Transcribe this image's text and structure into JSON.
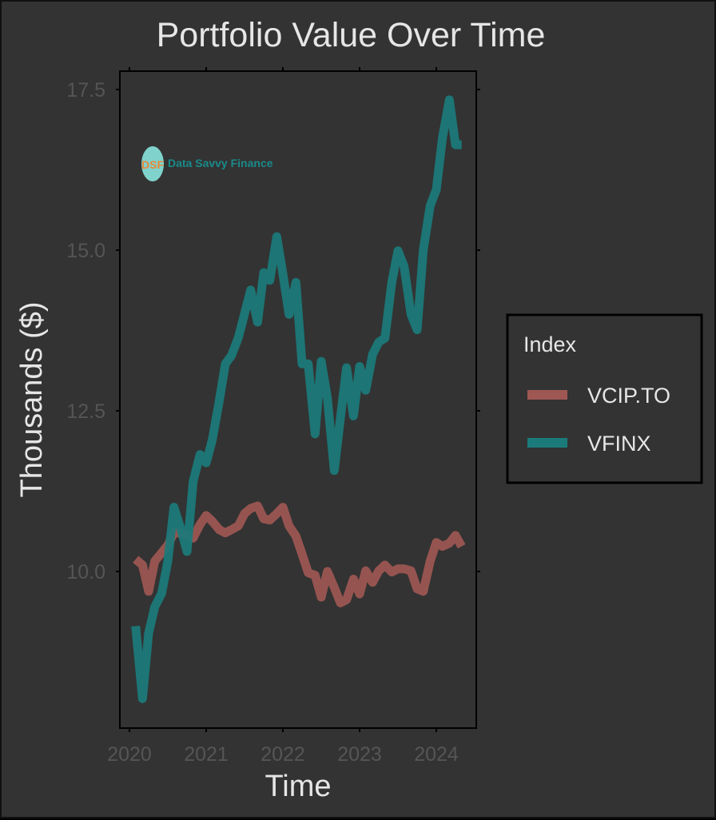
{
  "title": "Portfolio Value Over Time",
  "colors": {
    "background": "#333333",
    "panel_border": "#000000",
    "title_text": "#e6e6e6",
    "tick_text": "#555555",
    "axis_title_text": "#e6e6e6",
    "VCIP.TO": "#9e5752",
    "VFINX": "#1b7b7b"
  },
  "watermark": {
    "logo_letters": "DSF",
    "text": "Data Savvy Finance",
    "logo_bg": "#7fd3cc",
    "logo_letters_color": "#e8883a",
    "text_color": "#1b8a8a"
  },
  "legend": {
    "title": "Index",
    "items": [
      {
        "label": "VCIP.TO",
        "color": "#9e5752"
      },
      {
        "label": "VFINX",
        "color": "#1b7b7b"
      }
    ]
  },
  "chart_data": {
    "type": "line",
    "title": "Portfolio Value Over Time",
    "xlabel": "Time",
    "ylabel": "Thousands ($)",
    "x_ticks": [
      "2020",
      "2021",
      "2022",
      "2023",
      "2024"
    ],
    "y_ticks": [
      "10.0",
      "12.5",
      "15.0",
      "17.5"
    ],
    "xlim": [
      2019.92,
      2024.57
    ],
    "ylim": [
      7.5,
      17.8
    ],
    "grid": false,
    "legend_position": "right",
    "x": [
      2020.08,
      2020.17,
      2020.25,
      2020.33,
      2020.42,
      2020.5,
      2020.58,
      2020.67,
      2020.75,
      2020.83,
      2020.92,
      2021.0,
      2021.08,
      2021.17,
      2021.25,
      2021.33,
      2021.42,
      2021.5,
      2021.58,
      2021.67,
      2021.75,
      2021.83,
      2021.92,
      2022.0,
      2022.08,
      2022.17,
      2022.25,
      2022.33,
      2022.42,
      2022.5,
      2022.58,
      2022.67,
      2022.75,
      2022.83,
      2022.92,
      2023.0,
      2023.08,
      2023.17,
      2023.25,
      2023.33,
      2023.42,
      2023.5,
      2023.58,
      2023.67,
      2023.75,
      2023.83,
      2023.92,
      2024.0,
      2024.08,
      2024.17,
      2024.25,
      2024.33
    ],
    "series": [
      {
        "name": "VCIP.TO",
        "color": "#9e5752",
        "values": [
          10.19,
          10.1,
          9.69,
          10.16,
          10.29,
          10.41,
          10.6,
          10.6,
          10.57,
          10.52,
          10.73,
          10.87,
          10.78,
          10.65,
          10.6,
          10.65,
          10.71,
          10.9,
          10.98,
          11.02,
          10.82,
          10.8,
          10.9,
          11.0,
          10.71,
          10.55,
          10.27,
          9.98,
          9.94,
          9.6,
          10.0,
          9.75,
          9.51,
          9.56,
          9.88,
          9.65,
          10.01,
          9.83,
          10.01,
          10.1,
          9.99,
          10.04,
          10.04,
          10.01,
          9.73,
          9.69,
          10.16,
          10.45,
          10.39,
          10.44,
          10.56,
          10.39
        ]
      },
      {
        "name": "VFINX",
        "color": "#1b7b7b",
        "values": [
          9.15,
          8.02,
          9.04,
          9.45,
          9.66,
          10.16,
          11.0,
          10.66,
          10.31,
          11.4,
          11.82,
          11.69,
          12.05,
          12.65,
          13.23,
          13.36,
          13.64,
          14.01,
          14.38,
          13.88,
          14.65,
          14.53,
          15.21,
          14.63,
          14.0,
          14.5,
          13.23,
          13.23,
          12.14,
          13.27,
          12.7,
          11.57,
          12.39,
          13.17,
          12.42,
          13.19,
          12.82,
          13.38,
          13.57,
          13.63,
          14.5,
          14.99,
          14.75,
          14.0,
          13.76,
          15.0,
          15.69,
          15.94,
          16.75,
          17.34,
          16.64,
          16.64
        ]
      }
    ]
  }
}
